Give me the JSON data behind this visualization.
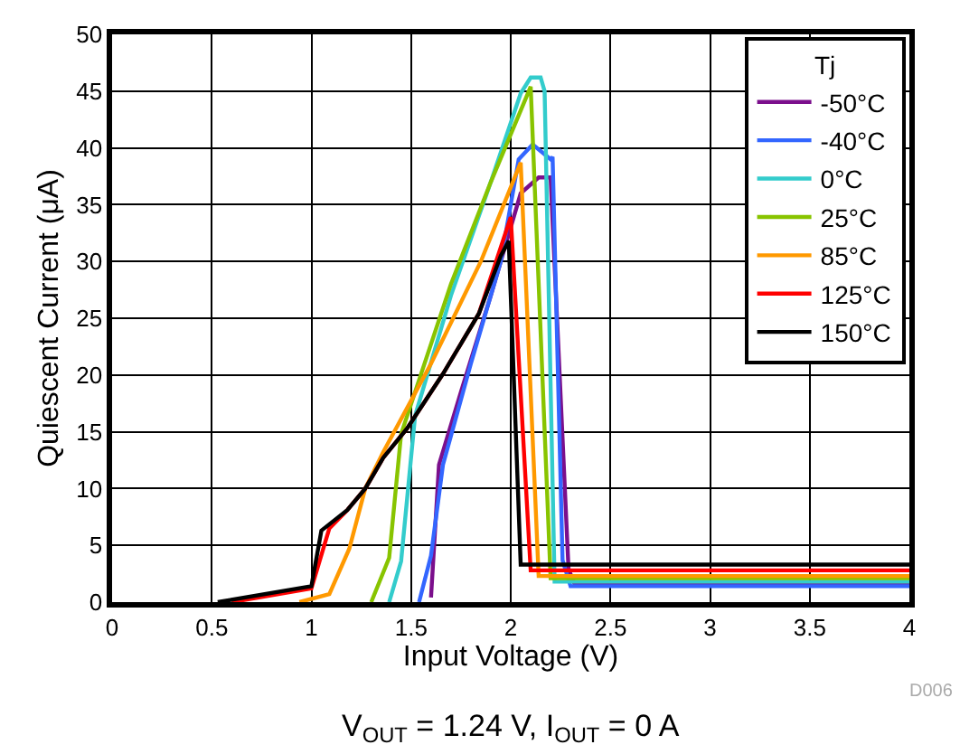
{
  "chart_data": {
    "type": "line",
    "xlabel": "Input Voltage (V)",
    "ylabel": "Quiescent Current (μA)",
    "legend_title": "Tj",
    "legend": "top right",
    "grid": true,
    "line_style": "solid",
    "marker": "none",
    "xlim": [
      0,
      4
    ],
    "xticks": [
      0,
      0.5,
      1,
      1.5,
      2,
      2.5,
      3,
      3.5,
      4
    ],
    "ylim": [
      0,
      50
    ],
    "yticks": [
      0,
      5,
      10,
      15,
      20,
      25,
      30,
      35,
      40,
      45,
      50
    ],
    "annotations": [
      "D006",
      "V$_{OUT}$ = 1.24 V, I$_{OUT}$ = 0 A"
    ],
    "series": [
      {
        "name": "-50°C",
        "color": "#7b0f8c",
        "x": [
          1.6,
          1.64,
          1.75,
          1.9,
          2.05,
          2.14,
          2.2,
          2.29,
          2.32,
          4
        ],
        "values": [
          0.4,
          12.1,
          18.5,
          27,
          36,
          37.4,
          37.4,
          2.9,
          1.6,
          1.6
        ]
      },
      {
        "name": "-40°C",
        "color": "#3366ff",
        "x": [
          1.54,
          1.6,
          1.66,
          1.8,
          1.95,
          2.04,
          2.11,
          2.2,
          2.21,
          2.26,
          2.3,
          4
        ],
        "values": [
          0,
          4.1,
          12.1,
          21,
          30,
          39,
          40.3,
          39,
          39.2,
          3.7,
          1.4,
          1.4
        ]
      },
      {
        "name": "0°C",
        "color": "#33cccc",
        "x": [
          1.39,
          1.45,
          1.52,
          1.7,
          1.9,
          2.05,
          2.1,
          2.15,
          2.17,
          2.22,
          4
        ],
        "values": [
          0,
          3.6,
          16.4,
          27,
          37,
          44.8,
          46.2,
          46.2,
          45,
          1.8,
          1.8
        ]
      },
      {
        "name": "25°C",
        "color": "#88c400",
        "x": [
          1.3,
          1.39,
          1.45,
          1.7,
          1.9,
          2.1,
          2.2,
          4
        ],
        "values": [
          0,
          3.9,
          14.8,
          28,
          37,
          45.4,
          2.1,
          2.1
        ]
      },
      {
        "name": "85°C",
        "color": "#ff9900",
        "x": [
          0.94,
          1.09,
          1.19,
          1.27,
          1.36,
          1.6,
          1.85,
          2.05,
          2.14,
          4
        ],
        "values": [
          0,
          0.7,
          4.7,
          10,
          13.2,
          21,
          30,
          38.7,
          2.3,
          2.3
        ]
      },
      {
        "name": "125°C",
        "color": "#ff0000",
        "x": [
          0.6,
          1.0,
          1.09,
          1.18,
          1.27,
          1.36,
          1.48,
          1.66,
          1.84,
          2.0,
          2.1,
          4
        ],
        "values": [
          0,
          1.2,
          6.5,
          8.1,
          10,
          12.7,
          15.3,
          20.1,
          25.4,
          33.9,
          2.8,
          2.8
        ]
      },
      {
        "name": "150°C",
        "color": "#000000",
        "x": [
          0.53,
          1.0,
          1.05,
          1.18,
          1.27,
          1.36,
          1.48,
          1.66,
          1.84,
          1.95,
          1.99,
          2.05,
          4
        ],
        "values": [
          0,
          1.4,
          6.3,
          8.1,
          10,
          12.7,
          15.3,
          20.1,
          25.4,
          30.5,
          31.8,
          3.3,
          3.3
        ]
      }
    ]
  }
}
